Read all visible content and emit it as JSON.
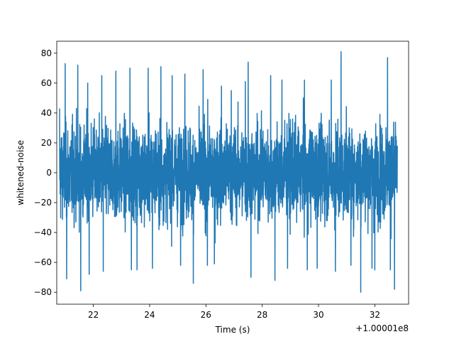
{
  "chart_data": {
    "type": "line",
    "title": "",
    "xlabel": "Time (s)",
    "ylabel": "whitened-noise",
    "x_offset_label": "+1.00001e8",
    "xlim": [
      20.7,
      33.2
    ],
    "ylim": [
      -88,
      88
    ],
    "x_ticks": [
      22,
      24,
      26,
      28,
      30,
      32
    ],
    "y_ticks": [
      -80,
      -60,
      -40,
      -20,
      0,
      20,
      40,
      60,
      80
    ],
    "x_tick_labels": [
      "22",
      "24",
      "26",
      "28",
      "30",
      "32"
    ],
    "y_tick_labels": [
      "−80",
      "−60",
      "−40",
      "−20",
      "0",
      "20",
      "40",
      "60",
      "80"
    ],
    "grid": false,
    "series": [
      {
        "color": "#1f77b4",
        "x_range": [
          20.8,
          32.8
        ],
        "typical_amplitude": 40,
        "spikes": [
          {
            "x": 21.0,
            "y": 73
          },
          {
            "x": 21.05,
            "y": -71
          },
          {
            "x": 21.45,
            "y": 72
          },
          {
            "x": 21.55,
            "y": -79
          },
          {
            "x": 21.8,
            "y": 60
          },
          {
            "x": 21.85,
            "y": -68
          },
          {
            "x": 22.3,
            "y": 65
          },
          {
            "x": 22.8,
            "y": 68
          },
          {
            "x": 22.35,
            "y": -66
          },
          {
            "x": 23.3,
            "y": 70
          },
          {
            "x": 23.35,
            "y": -65
          },
          {
            "x": 23.55,
            "y": -65
          },
          {
            "x": 23.95,
            "y": 70
          },
          {
            "x": 24.4,
            "y": 71
          },
          {
            "x": 24.1,
            "y": -64
          },
          {
            "x": 24.8,
            "y": 65
          },
          {
            "x": 25.1,
            "y": -62
          },
          {
            "x": 25.25,
            "y": 66
          },
          {
            "x": 25.55,
            "y": -74
          },
          {
            "x": 25.9,
            "y": 69
          },
          {
            "x": 26.05,
            "y": -62
          },
          {
            "x": 26.3,
            "y": -61
          },
          {
            "x": 26.55,
            "y": 58
          },
          {
            "x": 26.9,
            "y": 55
          },
          {
            "x": 27.4,
            "y": 61
          },
          {
            "x": 27.5,
            "y": 74
          },
          {
            "x": 27.6,
            "y": -70
          },
          {
            "x": 28.3,
            "y": 65
          },
          {
            "x": 28.45,
            "y": -72
          },
          {
            "x": 28.7,
            "y": 62
          },
          {
            "x": 28.9,
            "y": -64
          },
          {
            "x": 29.5,
            "y": 62
          },
          {
            "x": 29.6,
            "y": -65
          },
          {
            "x": 29.95,
            "y": -64
          },
          {
            "x": 30.45,
            "y": 62
          },
          {
            "x": 30.6,
            "y": -66
          },
          {
            "x": 30.8,
            "y": 81
          },
          {
            "x": 31.15,
            "y": -62
          },
          {
            "x": 31.5,
            "y": -80
          },
          {
            "x": 31.9,
            "y": -64
          },
          {
            "x": 32.0,
            "y": -65
          },
          {
            "x": 32.45,
            "y": 77
          },
          {
            "x": 32.55,
            "y": -65
          },
          {
            "x": 32.7,
            "y": -78
          }
        ]
      }
    ]
  }
}
